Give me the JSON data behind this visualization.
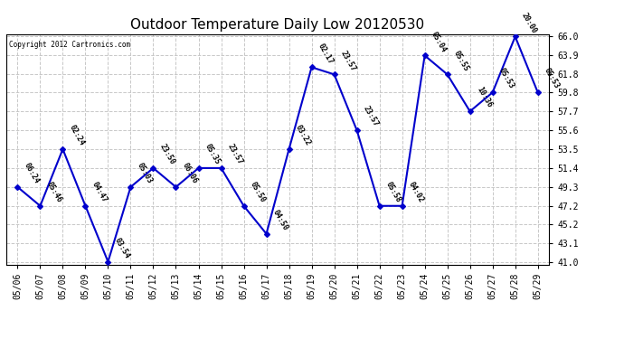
{
  "title": "Outdoor Temperature Daily Low 20120530",
  "copyright": "Copyright 2012 Cartronics.com",
  "line_color": "#0000cc",
  "background_color": "#ffffff",
  "grid_color": "#c8c8c8",
  "x_labels": [
    "05/06",
    "05/07",
    "05/08",
    "05/09",
    "05/10",
    "05/11",
    "05/12",
    "05/13",
    "05/14",
    "05/15",
    "05/16",
    "05/17",
    "05/18",
    "05/19",
    "05/20",
    "05/21",
    "05/22",
    "05/23",
    "05/24",
    "05/25",
    "05/26",
    "05/27",
    "05/28",
    "05/29"
  ],
  "y_values": [
    49.3,
    47.2,
    53.5,
    47.2,
    41.0,
    49.3,
    51.4,
    49.3,
    51.4,
    51.4,
    47.2,
    44.1,
    53.5,
    62.6,
    61.8,
    55.6,
    47.2,
    47.2,
    63.9,
    61.8,
    57.7,
    59.8,
    66.0,
    59.8
  ],
  "time_labels": [
    "06:24",
    "05:46",
    "02:24",
    "04:47",
    "03:54",
    "05:03",
    "23:50",
    "06:06",
    "05:35",
    "23:57",
    "05:50",
    "04:50",
    "03:22",
    "02:17",
    "23:57",
    "23:57",
    "05:58",
    "04:02",
    "05:04",
    "05:55",
    "10:36",
    "05:53",
    "20:00",
    "05:53"
  ],
  "ylim_min": 41.0,
  "ylim_max": 66.0,
  "yticks": [
    41.0,
    43.1,
    45.2,
    47.2,
    49.3,
    51.4,
    53.5,
    55.6,
    57.7,
    59.8,
    61.8,
    63.9,
    66.0
  ],
  "marker_size": 3,
  "line_width": 1.5,
  "title_fontsize": 11,
  "tick_fontsize": 7,
  "annotation_fontsize": 6,
  "annotation_rotation": -60
}
